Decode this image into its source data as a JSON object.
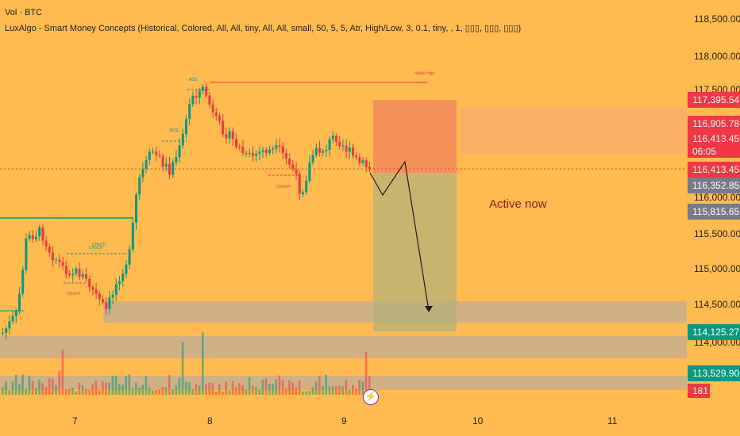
{
  "legend": {
    "line1": "Vol · BTC",
    "line2": "LuxAlgo - Smart Money Concepts (Historical, Colored, All, All, tiny, All, All, small, 50, 5, 5, Atr, High/Low, 3, 0.1, tiny, , 1, ▯▯▯, ▯▯▯, ▯▯▯)"
  },
  "price_axis": {
    "labels": [
      "118,500.00",
      "118,000.00",
      "117,500.00",
      "115,500.00",
      "115,000.00",
      "114,500.00",
      "114,000.00"
    ]
  },
  "price_tags": [
    {
      "text": "117,395.54",
      "bg": "#f23645"
    },
    {
      "text": "116,905.78",
      "bg": "#f23645"
    },
    {
      "text": "116,413.45",
      "bg": "#f23645"
    },
    {
      "text": "06:05",
      "bg": "#f23645"
    },
    {
      "text": "116,413.45",
      "bg": "#f23645"
    },
    {
      "text": "116,352.85",
      "bg": "#787b86"
    },
    {
      "text": "115,815.65",
      "bg": "#787b86"
    },
    {
      "text": "114,125.27",
      "bg": "#089981"
    },
    {
      "text": "113,529.90",
      "bg": "#089981"
    },
    {
      "text": "181",
      "bg": "#f23645"
    }
  ],
  "partial_axis_label": "116,000.00",
  "time_axis": {
    "labels": [
      "7",
      "8",
      "9",
      "10",
      "11"
    ]
  },
  "annotations": {
    "active_now": "Active now",
    "bos_1": "BOS",
    "bos_2": "BOS",
    "weak_high": "Weak High",
    "choch_1": "CHoCH",
    "choch_2": "CHoCH",
    "choch_3": "CHoCH",
    "choch_4": "CHoCH"
  },
  "colors": {
    "background": "#ffbb4f",
    "bull": "#089981",
    "bear": "#f23645",
    "short_zone": "#f28b5a",
    "target_zone": "#b5b07a",
    "demand_zone": "#a9a9b5"
  },
  "icons": {
    "alert": "lightning-bolt-icon"
  },
  "chart_data": {
    "type": "candlestick",
    "symbol": "BTC",
    "y_range": [
      113400,
      118650
    ],
    "x_day_labels": [
      "7",
      "8",
      "9",
      "10",
      "11"
    ],
    "key_levels": {
      "entry": 116413.45,
      "stop_zone_top": 117395.54,
      "target_zone_bottom": 114125.27,
      "weak_high": 117600
    },
    "path_projection": [
      116413.45,
      116050,
      116550,
      114450
    ]
  }
}
